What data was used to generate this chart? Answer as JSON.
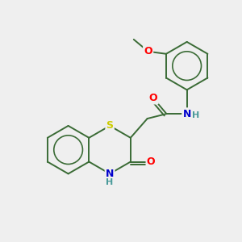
{
  "background_color": "#efefef",
  "bond_color": "#3a6b35",
  "atom_colors": {
    "O": "#ff0000",
    "N": "#0000cc",
    "S": "#cccc00",
    "H": "#4a9a9a",
    "C": "#3a6b35"
  },
  "line_width": 1.4,
  "font_size": 9,
  "font_size_small": 8
}
